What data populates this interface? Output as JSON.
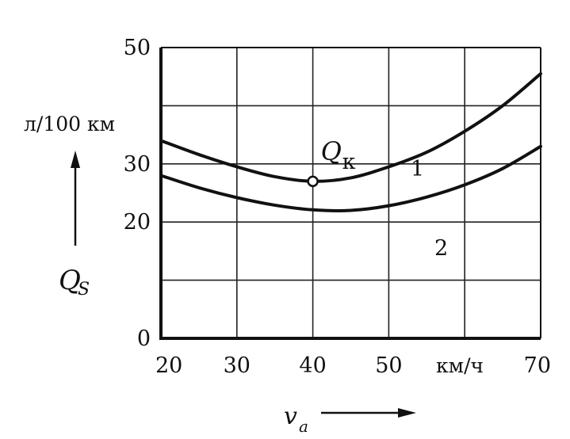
{
  "chart_data": {
    "type": "line",
    "xlabel": "v",
    "xlabel_sub": "а",
    "x_unit": "км/ч",
    "ylabel": "Q",
    "ylabel_sub": "S",
    "y_unit": "л/100 км",
    "xlim": [
      20,
      70
    ],
    "ylim": [
      0,
      50
    ],
    "grid": true,
    "x_ticks": [
      "20",
      "30",
      "40",
      "50",
      "70"
    ],
    "x_tick_values": [
      20,
      30,
      40,
      50,
      70
    ],
    "y_ticks": [
      "0",
      "20",
      "30",
      "50"
    ],
    "y_tick_values": [
      0,
      20,
      30,
      50
    ],
    "grid_x": [
      20,
      30,
      40,
      50,
      60,
      70
    ],
    "grid_y": [
      0,
      10,
      20,
      30,
      40,
      50
    ],
    "series": [
      {
        "name": "1",
        "x": [
          20,
          25,
          30,
          35,
          40,
          45,
          50,
          55,
          60,
          65,
          70
        ],
        "y": [
          34,
          31.6,
          29.5,
          27.8,
          27,
          27.6,
          29.5,
          32,
          35.6,
          40,
          45.5
        ]
      },
      {
        "name": "2",
        "x": [
          20,
          25,
          30,
          35,
          40,
          45,
          50,
          55,
          60,
          65,
          70
        ],
        "y": [
          28,
          25.9,
          24.2,
          22.9,
          22.1,
          22,
          22.8,
          24.3,
          26.4,
          29.2,
          33
        ]
      }
    ],
    "annotations": [
      {
        "text": "Q",
        "sub": "к",
        "x": 40,
        "y": 27
      }
    ]
  }
}
